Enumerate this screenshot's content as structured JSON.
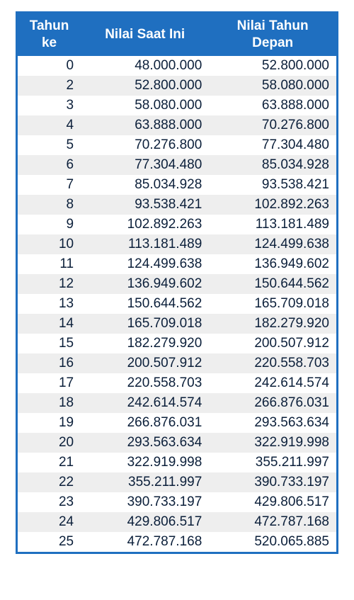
{
  "table": {
    "type": "table",
    "header_bg": "#1f6fc0",
    "header_fg": "#ffffff",
    "header_fontsize": 19,
    "header_fontweight": "bold",
    "body_fontsize": 19,
    "body_fg": "#0b1f3a",
    "row_bg_even": "#ffffff",
    "row_bg_odd": "#eeeeee",
    "outer_border_color": "#1f6fc0",
    "outer_border_width": 3,
    "col_widths_pct": [
      20,
      40,
      40
    ],
    "columns": [
      "Tahun ke",
      "Nilai Saat Ini",
      "Nilai Tahun Depan"
    ],
    "header_lines": [
      [
        "Tahun",
        "ke"
      ],
      [
        "Nilai Saat Ini"
      ],
      [
        "Nilai Tahun",
        "Depan"
      ]
    ],
    "rows": [
      [
        "0",
        "48.000.000",
        "52.800.000"
      ],
      [
        "2",
        "52.800.000",
        "58.080.000"
      ],
      [
        "3",
        "58.080.000",
        "63.888.000"
      ],
      [
        "4",
        "63.888.000",
        "70.276.800"
      ],
      [
        "5",
        "70.276.800",
        "77.304.480"
      ],
      [
        "6",
        "77.304.480",
        "85.034.928"
      ],
      [
        "7",
        "85.034.928",
        "93.538.421"
      ],
      [
        "8",
        "93.538.421",
        "102.892.263"
      ],
      [
        "9",
        "102.892.263",
        "113.181.489"
      ],
      [
        "10",
        "113.181.489",
        "124.499.638"
      ],
      [
        "11",
        "124.499.638",
        "136.949.602"
      ],
      [
        "12",
        "136.949.602",
        "150.644.562"
      ],
      [
        "13",
        "150.644.562",
        "165.709.018"
      ],
      [
        "14",
        "165.709.018",
        "182.279.920"
      ],
      [
        "15",
        "182.279.920",
        "200.507.912"
      ],
      [
        "16",
        "200.507.912",
        "220.558.703"
      ],
      [
        "17",
        "220.558.703",
        "242.614.574"
      ],
      [
        "18",
        "242.614.574",
        "266.876.031"
      ],
      [
        "19",
        "266.876.031",
        "293.563.634"
      ],
      [
        "20",
        "293.563.634",
        "322.919.998"
      ],
      [
        "21",
        "322.919.998",
        "355.211.997"
      ],
      [
        "22",
        "355.211.997",
        "390.733.197"
      ],
      [
        "23",
        "390.733.197",
        "429.806.517"
      ],
      [
        "24",
        "429.806.517",
        "472.787.168"
      ],
      [
        "25",
        "472.787.168",
        "520.065.885"
      ]
    ]
  }
}
